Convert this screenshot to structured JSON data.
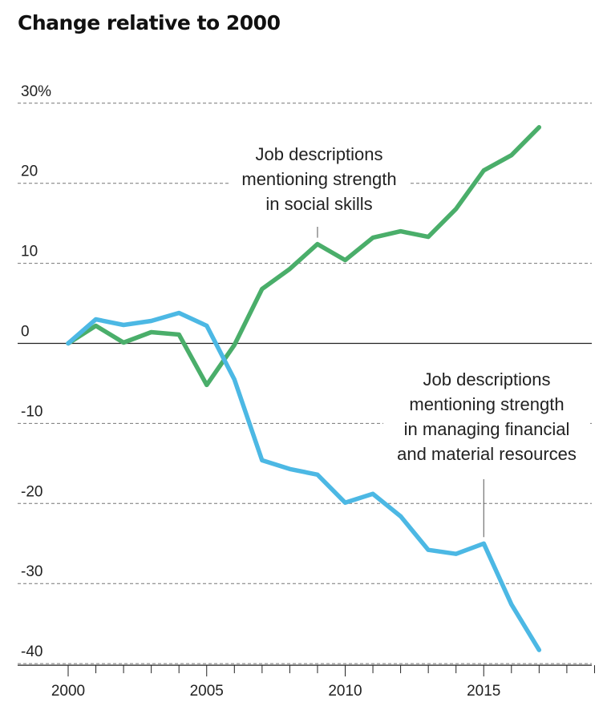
{
  "chart_data": {
    "type": "line",
    "title": "Change relative to 2000",
    "xlabel": "",
    "ylabel": "",
    "x": [
      2000,
      2001,
      2002,
      2003,
      2004,
      2005,
      2006,
      2007,
      2008,
      2009,
      2010,
      2011,
      2012,
      2013,
      2014,
      2015,
      2016,
      2017
    ],
    "xlim": [
      2000,
      2019
    ],
    "ylim": [
      -40,
      30
    ],
    "x_tick_labels": [
      "2000",
      "2005",
      "2010",
      "2015"
    ],
    "y_ticks": [
      30,
      20,
      10,
      0,
      -10,
      -20,
      -30,
      -40
    ],
    "y_tick_labels": [
      "30%",
      "20",
      "10",
      "0",
      "-10",
      "-20",
      "-30",
      "-40"
    ],
    "grid": true,
    "series": [
      {
        "color": "#4aae6a",
        "values": [
          0,
          2.2,
          0.1,
          1.4,
          1.1,
          -5.2,
          -0.2,
          6.8,
          9.3,
          12.4,
          10.4,
          13.2,
          14.0,
          13.3,
          16.8,
          21.6,
          23.5,
          27.0
        ]
      },
      {
        "color": "#4cb8e4",
        "values": [
          0,
          3.0,
          2.3,
          2.8,
          3.8,
          2.2,
          -4.5,
          -14.6,
          -15.7,
          -16.4,
          -19.9,
          -18.8,
          -21.6,
          -25.8,
          -26.3,
          -25.0,
          -32.6,
          -38.3
        ]
      }
    ],
    "annotations": [
      {
        "lines": [
          "Job descriptions",
          "mentioning strength",
          "in social skills"
        ],
        "target_x": 2009,
        "target_y": 12.4
      },
      {
        "lines": [
          "Job descriptions",
          "mentioning strength",
          "in managing financial",
          "and material resources"
        ],
        "target_x": 2015,
        "target_y": -25.0
      }
    ]
  }
}
